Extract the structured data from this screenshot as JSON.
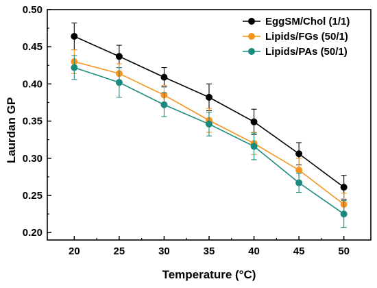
{
  "chart_data": {
    "type": "line",
    "xlabel": "Temperature (°C)",
    "ylabel": "Laurdan GP",
    "xlim": [
      17,
      53
    ],
    "ylim": [
      0.19,
      0.5
    ],
    "x": [
      20,
      25,
      30,
      35,
      40,
      45,
      50
    ],
    "xticks": [
      "20",
      "25",
      "30",
      "35",
      "40",
      "45",
      "50"
    ],
    "yticks": [
      "0.20",
      "0.25",
      "0.30",
      "0.35",
      "0.40",
      "0.45",
      "0.50"
    ],
    "grid": false,
    "legend_position": "top-right",
    "series": [
      {
        "name": "EggSM/Chol (1/1)",
        "color": "#000000",
        "values": [
          0.464,
          0.437,
          0.409,
          0.382,
          0.349,
          0.306,
          0.261
        ],
        "errors": [
          0.018,
          0.015,
          0.013,
          0.018,
          0.017,
          0.015,
          0.016
        ]
      },
      {
        "name": "Lipids/FGs (50/1)",
        "color": "#f7941d",
        "values": [
          0.43,
          0.414,
          0.385,
          0.351,
          0.32,
          0.284,
          0.238
        ],
        "errors": [
          0.016,
          0.013,
          0.013,
          0.016,
          0.015,
          0.016,
          0.015
        ]
      },
      {
        "name": "Lipids/PAs (50/1)",
        "color": "#1a8a7e",
        "values": [
          0.422,
          0.402,
          0.372,
          0.346,
          0.316,
          0.267,
          0.225
        ],
        "errors": [
          0.016,
          0.02,
          0.016,
          0.016,
          0.018,
          0.013,
          0.018
        ]
      }
    ]
  }
}
